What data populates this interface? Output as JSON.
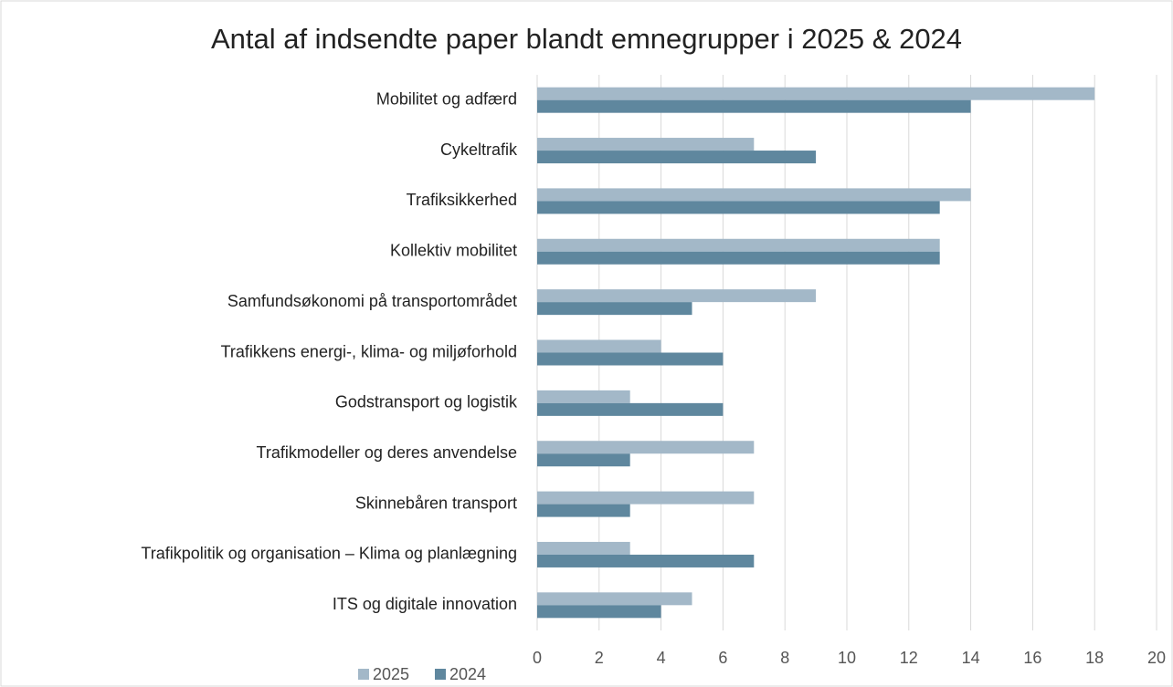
{
  "chart_data": {
    "type": "bar",
    "orientation": "horizontal",
    "title": "Antal af indsendte paper blandt emnegrupper i 2025 & 2024",
    "categories": [
      "Mobilitet og adfærd",
      "Cykeltrafik",
      "Trafiksikkerhed",
      "Kollektiv mobilitet",
      "Samfundsøkonomi på transportområdet",
      "Trafikkens energi-, klima- og miljøforhold",
      "Godstransport og logistik",
      "Trafikmodeller og deres anvendelse",
      "Skinnebåren transport",
      "Trafikpolitik og organisation – Klima og planlægning",
      "ITS og digitale innovation"
    ],
    "series": [
      {
        "name": "2025",
        "color": "#a3b8c8",
        "values": [
          18,
          7,
          14,
          13,
          9,
          4,
          3,
          7,
          7,
          3,
          5
        ]
      },
      {
        "name": "2024",
        "color": "#5f879e",
        "values": [
          14,
          9,
          13,
          13,
          5,
          6,
          6,
          3,
          3,
          7,
          4
        ]
      }
    ],
    "xlim": [
      0,
      20
    ],
    "xticks": [
      0,
      2,
      4,
      6,
      8,
      10,
      12,
      14,
      16,
      18,
      20
    ],
    "grid": true,
    "legend": "bottom"
  }
}
